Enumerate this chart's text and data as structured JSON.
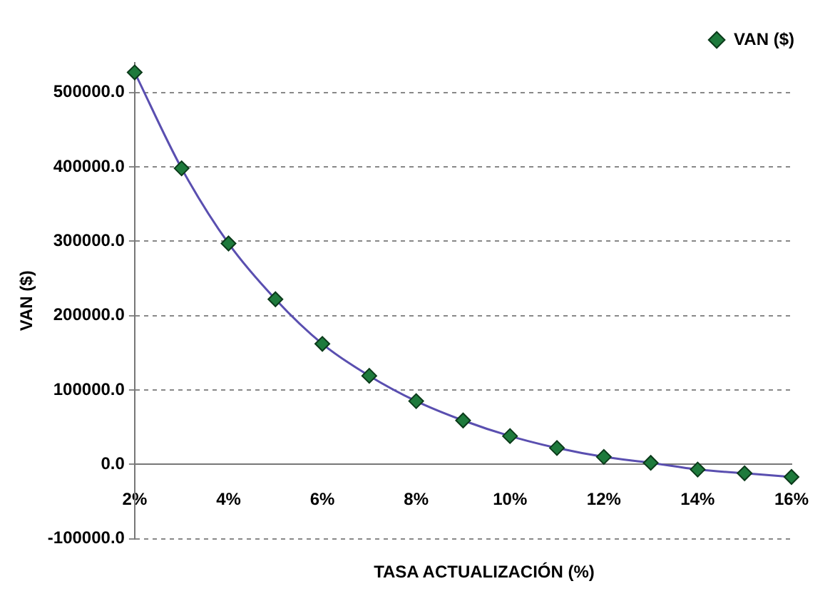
{
  "chart_data": {
    "type": "line",
    "xlabel": "TASA ACTUALIZACIÓN (%)",
    "ylabel": "VAN ($)",
    "categories": [
      "2%",
      null,
      "4%",
      null,
      "6%",
      null,
      "8%",
      null,
      "10%",
      null,
      "12%",
      null,
      "14%",
      null,
      "16%"
    ],
    "series": [
      {
        "name": "VAN ($)",
        "color": "#5a4fb0",
        "values": [
          527000,
          398000,
          297000,
          222000,
          162000,
          119000,
          85000,
          59000,
          38000,
          22000,
          10000,
          2000,
          -7000,
          -12000,
          -17000
        ]
      }
    ],
    "ylim": [
      -100000,
      540000
    ],
    "yticks": [
      {
        "value": -100000,
        "label": "-100000.0"
      },
      {
        "value": 0,
        "label": "0.0"
      },
      {
        "value": 100000,
        "label": "100000.0"
      },
      {
        "value": 200000,
        "label": "200000.0"
      },
      {
        "value": 300000,
        "label": "300000.0"
      },
      {
        "value": 400000,
        "label": "400000.0"
      },
      {
        "value": 500000,
        "label": "500000.0"
      }
    ],
    "grid": "y",
    "legend": "top right",
    "marker": "diamond",
    "line_style": "solid"
  }
}
